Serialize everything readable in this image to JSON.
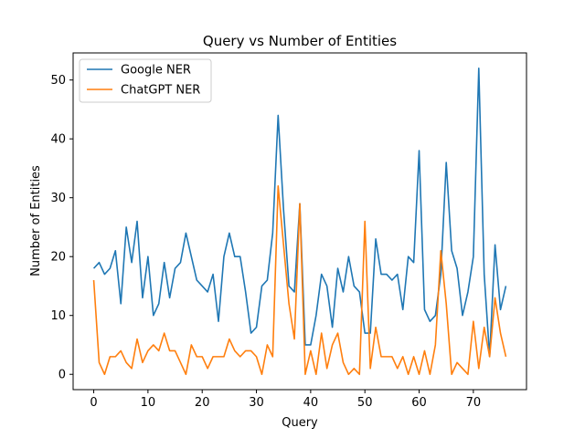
{
  "chart_data": {
    "type": "line",
    "title": "Query vs Number of Entities",
    "xlabel": "Query",
    "ylabel": "Number of Entities",
    "xlim": [
      -3.8,
      79.8
    ],
    "ylim": [
      -2.6,
      54.6
    ],
    "xticks": [
      0,
      10,
      20,
      30,
      40,
      50,
      60,
      70
    ],
    "yticks": [
      0,
      10,
      20,
      30,
      40,
      50
    ],
    "grid": false,
    "legend": "top-left",
    "x": [
      0,
      1,
      2,
      3,
      4,
      5,
      6,
      7,
      8,
      9,
      10,
      11,
      12,
      13,
      14,
      15,
      16,
      17,
      18,
      19,
      20,
      21,
      22,
      23,
      24,
      25,
      26,
      27,
      28,
      29,
      30,
      31,
      32,
      33,
      34,
      35,
      36,
      37,
      38,
      39,
      40,
      41,
      42,
      43,
      44,
      45,
      46,
      47,
      48,
      49,
      50,
      51,
      52,
      53,
      54,
      55,
      56,
      57,
      58,
      59,
      60,
      61,
      62,
      63,
      64,
      65,
      66,
      67,
      68,
      69,
      70,
      71,
      72,
      73,
      74,
      75,
      76
    ],
    "series": [
      {
        "name": "Google NER",
        "color": "#1f77b4",
        "values": [
          18,
          19,
          17,
          18,
          21,
          12,
          25,
          19,
          26,
          13,
          20,
          10,
          12,
          19,
          13,
          18,
          19,
          24,
          20,
          16,
          15,
          14,
          17,
          9,
          20,
          24,
          20,
          20,
          14,
          7,
          8,
          15,
          16,
          24,
          44,
          28,
          15,
          14,
          29,
          5,
          5,
          10,
          17,
          15,
          8,
          18,
          14,
          20,
          15,
          14,
          7,
          7,
          23,
          17,
          17,
          16,
          17,
          11,
          20,
          19,
          38,
          11,
          9,
          10,
          17,
          36,
          21,
          18,
          10,
          14,
          20,
          52,
          17,
          3,
          22,
          11,
          15
        ]
      },
      {
        "name": "ChatGPT NER",
        "color": "#ff7f0e",
        "values": [
          16,
          2,
          0,
          3,
          3,
          4,
          2,
          1,
          6,
          2,
          4,
          5,
          4,
          7,
          4,
          4,
          2,
          0,
          5,
          3,
          3,
          1,
          3,
          3,
          3,
          6,
          4,
          3,
          4,
          4,
          3,
          0,
          5,
          3,
          32,
          22,
          12,
          6,
          29,
          0,
          4,
          0,
          7,
          1,
          5,
          7,
          2,
          0,
          1,
          0,
          26,
          1,
          8,
          3,
          3,
          3,
          1,
          3,
          0,
          3,
          0,
          4,
          0,
          5,
          21,
          12,
          0,
          2,
          1,
          0,
          9,
          1,
          8,
          3,
          13,
          7,
          3
        ]
      }
    ]
  }
}
